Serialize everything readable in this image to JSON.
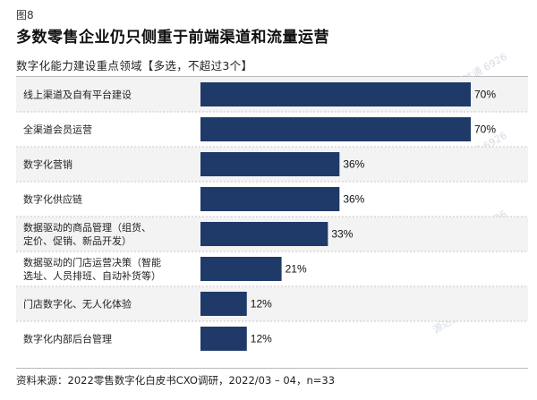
{
  "figure_label": "图8",
  "title": "多数零售企业仍只侧重于前端渠道和流量运营",
  "subtitle": "数字化能力建设重点领域【多选，不超过3个】",
  "source": "资料来源：2022零售数字化白皮书CXO调研，2022/03 – 04，n=33",
  "watermark": "源达通 6926",
  "colors": {
    "bar": "#1f3a68",
    "rowband": "#f3f3f3",
    "separator": "#c8c8c8"
  },
  "chart_data": {
    "type": "bar",
    "orientation": "horizontal",
    "categories": [
      [
        "线上渠道及自有平台建设"
      ],
      [
        "全渠道会员运营"
      ],
      [
        "数字化营销"
      ],
      [
        "数字化供应链"
      ],
      [
        "数据驱动的商品管理（组货、",
        "定价、促销、新品开发）"
      ],
      [
        "数据驱动的门店运营决策（智能",
        "选址、人员排班、自动补货等）"
      ],
      [
        "门店数字化、无人化体验"
      ],
      [
        "数字化内部后台管理"
      ]
    ],
    "values": [
      70,
      70,
      36,
      36,
      33,
      21,
      12,
      12
    ],
    "value_labels": [
      "70%",
      "70%",
      "36%",
      "36%",
      "33%",
      "21%",
      "12%",
      "12%"
    ],
    "xlim": [
      0,
      100
    ],
    "unit": "%"
  }
}
